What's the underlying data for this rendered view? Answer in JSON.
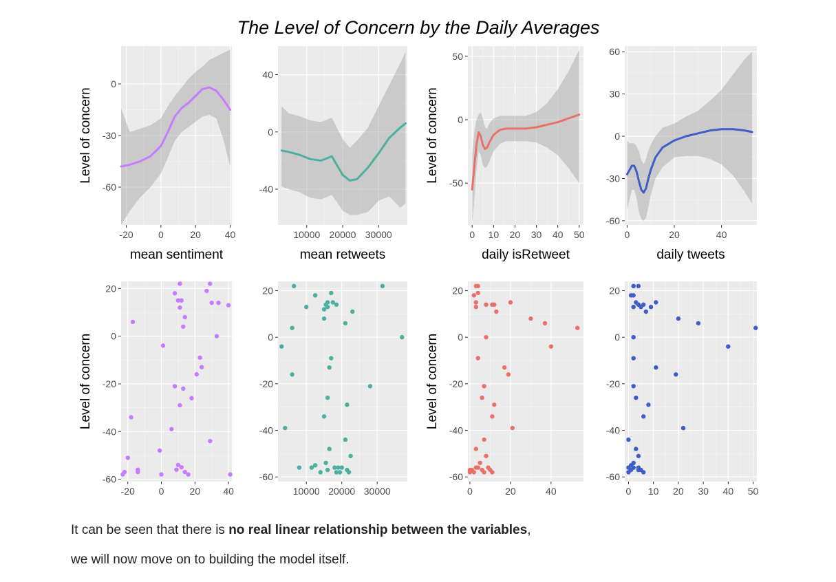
{
  "figure_title": "The Level of Concern by the Daily Averages",
  "paragraph": {
    "line1_before": "It can be seen that there is ",
    "line1_bold": "no real linear relationship between the variables",
    "line1_after": ",",
    "line2": "we will now move on to building the model itself."
  },
  "chart_data": [
    {
      "type": "line",
      "id": "smooth-sentiment",
      "color": "#c77cff",
      "xlabel": "mean sentiment",
      "ylabel": "Level of concern",
      "xlim": [
        -23,
        41
      ],
      "ylim": [
        -82,
        22
      ],
      "xticks": [
        -20,
        0,
        20,
        40
      ],
      "yticks": [
        -60,
        -30,
        0
      ],
      "x": [
        -23,
        -18,
        -12,
        -6,
        0,
        4,
        8,
        12,
        16,
        20,
        24,
        28,
        32,
        36,
        40
      ],
      "y": [
        -48,
        -47,
        -45,
        -42,
        -36,
        -28,
        -19,
        -14,
        -11,
        -7,
        -3,
        -2,
        -4,
        -9,
        -15
      ],
      "lower": [
        -82,
        -74,
        -66,
        -60,
        -52,
        -43,
        -33,
        -28,
        -25,
        -22,
        -19,
        -18,
        -20,
        -32,
        -48
      ],
      "upper": [
        -14,
        -28,
        -26,
        -24,
        -20,
        -13,
        -7,
        -2,
        3,
        7,
        10,
        14,
        16,
        18,
        20
      ]
    },
    {
      "type": "line",
      "id": "smooth-retweets",
      "color": "#4daf9f",
      "xlabel": "mean retweets",
      "ylabel": "",
      "xlim": [
        2000,
        38000
      ],
      "ylim": [
        -65,
        60
      ],
      "xticks": [
        10000,
        20000,
        30000
      ],
      "yticks": [
        -40,
        0,
        40
      ],
      "x": [
        3000,
        5000,
        8000,
        11000,
        14000,
        17000,
        20000,
        22000,
        24000,
        27000,
        30000,
        33000,
        36000,
        37500
      ],
      "y": [
        -13,
        -14,
        -16,
        -19,
        -20,
        -17,
        -30,
        -34,
        -33,
        -25,
        -15,
        -4,
        3,
        6
      ],
      "lower": [
        -38,
        -40,
        -42,
        -46,
        -47,
        -44,
        -55,
        -58,
        -58,
        -56,
        -48,
        -45,
        -53,
        -50
      ],
      "upper": [
        18,
        13,
        11,
        8,
        7,
        10,
        -5,
        -11,
        -6,
        3,
        18,
        33,
        48,
        56
      ]
    },
    {
      "type": "line",
      "id": "smooth-isretweet",
      "color": "#e8726a",
      "xlabel": "daily isRetweet",
      "ylabel": "Level of concern",
      "xlim": [
        -2,
        52
      ],
      "ylim": [
        -83,
        58
      ],
      "xticks": [
        0,
        10,
        20,
        30,
        40,
        50
      ],
      "yticks": [
        -50,
        0,
        50
      ],
      "x": [
        0,
        1,
        2,
        3,
        4,
        5,
        6,
        7,
        8,
        10,
        13,
        16,
        20,
        25,
        30,
        35,
        40,
        45,
        50
      ],
      "y": [
        -55,
        -37,
        -20,
        -10,
        -13,
        -20,
        -23,
        -22,
        -18,
        -12,
        -8,
        -7,
        -7,
        -7,
        -6,
        -4,
        -2,
        1,
        4
      ],
      "lower": [
        -82,
        -64,
        -40,
        -25,
        -28,
        -36,
        -38,
        -37,
        -33,
        -25,
        -19,
        -17,
        -17,
        -17,
        -18,
        -22,
        -28,
        -38,
        -50
      ],
      "upper": [
        -27,
        -10,
        0,
        4,
        6,
        1,
        -6,
        -7,
        -3,
        1,
        3,
        3,
        3,
        3,
        6,
        13,
        24,
        38,
        55
      ]
    },
    {
      "type": "line",
      "id": "smooth-tweets",
      "color": "#3f5cc7",
      "xlabel": "daily tweets",
      "ylabel": "",
      "xlim": [
        -1,
        55
      ],
      "ylim": [
        -63,
        64
      ],
      "xticks": [
        0,
        20,
        40
      ],
      "yticks": [
        -60,
        -30,
        0,
        30,
        60
      ],
      "x": [
        0,
        1,
        2,
        3,
        4,
        5,
        6,
        7,
        8,
        9,
        10,
        12,
        15,
        20,
        25,
        30,
        35,
        40,
        45,
        50,
        53
      ],
      "y": [
        -27,
        -24,
        -21,
        -21,
        -25,
        -32,
        -38,
        -40,
        -37,
        -30,
        -24,
        -15,
        -8,
        -3,
        0,
        2,
        4,
        5,
        5,
        4,
        3
      ],
      "lower": [
        -52,
        -45,
        -38,
        -38,
        -44,
        -54,
        -59,
        -60,
        -58,
        -50,
        -42,
        -30,
        -22,
        -15,
        -14,
        -14,
        -16,
        -20,
        -28,
        -40,
        -48
      ],
      "upper": [
        -3,
        -5,
        -5,
        -5,
        -7,
        -11,
        -17,
        -20,
        -16,
        -10,
        -6,
        0,
        6,
        9,
        14,
        18,
        25,
        33,
        44,
        55,
        60
      ]
    },
    {
      "type": "scatter",
      "id": "scatter-sentiment",
      "color": "#c77cff",
      "xlabel": "",
      "ylabel": "Level of concern",
      "xlim": [
        -24,
        42
      ],
      "ylim": [
        -61,
        23
      ],
      "xticks": [
        -20,
        0,
        20,
        40
      ],
      "yticks": [
        -60,
        -40,
        -20,
        0,
        20
      ],
      "points": [
        [
          11,
          22
        ],
        [
          29,
          22
        ],
        [
          8,
          18
        ],
        [
          27,
          19
        ],
        [
          10,
          15
        ],
        [
          12,
          15
        ],
        [
          30,
          14
        ],
        [
          34,
          14
        ],
        [
          40,
          13
        ],
        [
          11,
          12
        ],
        [
          14,
          8
        ],
        [
          -17,
          6
        ],
        [
          13,
          4
        ],
        [
          33,
          0
        ],
        [
          1,
          -4
        ],
        [
          23,
          -9
        ],
        [
          24,
          -13
        ],
        [
          21,
          -16
        ],
        [
          8,
          -21
        ],
        [
          13,
          -22
        ],
        [
          18,
          -26
        ],
        [
          11,
          -29
        ],
        [
          -18,
          -34
        ],
        [
          29,
          -44
        ],
        [
          6,
          -39
        ],
        [
          -1,
          -48
        ],
        [
          -20,
          -51
        ],
        [
          10,
          -54
        ],
        [
          12,
          -55
        ],
        [
          9,
          -56
        ],
        [
          14,
          -57
        ],
        [
          -14,
          -56
        ],
        [
          -14,
          -57
        ],
        [
          -22,
          -57
        ],
        [
          -23,
          -58
        ],
        [
          0,
          -58
        ],
        [
          16,
          -58
        ],
        [
          41,
          -58
        ]
      ]
    },
    {
      "type": "scatter",
      "id": "scatter-retweets",
      "color": "#4daf9f",
      "xlabel": "",
      "ylabel": "",
      "xlim": [
        2000,
        38500
      ],
      "ylim": [
        -62,
        24
      ],
      "xticks": [
        10000,
        20000,
        30000
      ],
      "yticks": [
        -60,
        -40,
        -20,
        0,
        20
      ],
      "points": [
        [
          6500,
          22
        ],
        [
          31500,
          22
        ],
        [
          12500,
          18
        ],
        [
          17000,
          19
        ],
        [
          16000,
          15
        ],
        [
          17500,
          15
        ],
        [
          15500,
          14
        ],
        [
          18500,
          14
        ],
        [
          16000,
          13
        ],
        [
          15000,
          12
        ],
        [
          23000,
          11
        ],
        [
          10000,
          13
        ],
        [
          15000,
          8
        ],
        [
          21000,
          6
        ],
        [
          6000,
          4
        ],
        [
          37000,
          0
        ],
        [
          3000,
          -4
        ],
        [
          17000,
          -9
        ],
        [
          16500,
          -13
        ],
        [
          6000,
          -16
        ],
        [
          28000,
          -21
        ],
        [
          16000,
          -26
        ],
        [
          21500,
          -29
        ],
        [
          15000,
          -34
        ],
        [
          4000,
          -39
        ],
        [
          21000,
          -44
        ],
        [
          16500,
          -48
        ],
        [
          22500,
          -51
        ],
        [
          15500,
          -54
        ],
        [
          8000,
          -56
        ],
        [
          11500,
          -56
        ],
        [
          12500,
          -55
        ],
        [
          16000,
          -57
        ],
        [
          18000,
          -56
        ],
        [
          19000,
          -56
        ],
        [
          20000,
          -56
        ],
        [
          18500,
          -58
        ],
        [
          21500,
          -57
        ],
        [
          14000,
          -58
        ],
        [
          19500,
          -58
        ],
        [
          22000,
          -58
        ]
      ]
    },
    {
      "type": "scatter",
      "id": "scatter-isretweet",
      "color": "#e8726a",
      "xlabel": "",
      "ylabel": "Level of concern",
      "xlim": [
        -1,
        56
      ],
      "ylim": [
        -62,
        24
      ],
      "xticks": [
        0,
        20,
        40
      ],
      "yticks": [
        -60,
        -40,
        -20,
        0,
        20
      ],
      "points": [
        [
          3,
          22
        ],
        [
          4,
          22
        ],
        [
          2,
          18
        ],
        [
          4,
          19
        ],
        [
          3,
          15
        ],
        [
          20,
          15
        ],
        [
          8,
          14
        ],
        [
          11,
          14
        ],
        [
          12,
          14
        ],
        [
          3,
          13
        ],
        [
          13,
          11
        ],
        [
          30,
          8
        ],
        [
          37,
          6
        ],
        [
          53,
          4
        ],
        [
          8,
          0
        ],
        [
          40,
          -4
        ],
        [
          4,
          -9
        ],
        [
          17,
          -13
        ],
        [
          19,
          -16
        ],
        [
          7,
          -21
        ],
        [
          6,
          -26
        ],
        [
          12,
          -29
        ],
        [
          11,
          -34
        ],
        [
          21,
          -39
        ],
        [
          7,
          -44
        ],
        [
          3,
          -48
        ],
        [
          8,
          -51
        ],
        [
          5,
          -54
        ],
        [
          4,
          -56
        ],
        [
          6,
          -57
        ],
        [
          9,
          -56
        ],
        [
          10,
          -57
        ],
        [
          0,
          -57
        ],
        [
          0,
          -58
        ],
        [
          2,
          -58
        ],
        [
          1,
          -57
        ],
        [
          3,
          -56
        ],
        [
          7,
          -58
        ],
        [
          11,
          -58
        ]
      ]
    },
    {
      "type": "scatter",
      "id": "scatter-tweets",
      "color": "#3f5cc7",
      "xlabel": "",
      "ylabel": "",
      "xlim": [
        -1.5,
        51.5
      ],
      "ylim": [
        -62,
        24
      ],
      "xticks": [
        0,
        10,
        20,
        30,
        40,
        50
      ],
      "yticks": [
        -60,
        -40,
        -20,
        0,
        20
      ],
      "points": [
        [
          2,
          22
        ],
        [
          4,
          22
        ],
        [
          1,
          18
        ],
        [
          2,
          18
        ],
        [
          3,
          15
        ],
        [
          4,
          14
        ],
        [
          5,
          13
        ],
        [
          2,
          13
        ],
        [
          6,
          14
        ],
        [
          9,
          13
        ],
        [
          11,
          15
        ],
        [
          7,
          11
        ],
        [
          20,
          8
        ],
        [
          28,
          6
        ],
        [
          51,
          4
        ],
        [
          2,
          0
        ],
        [
          40,
          -4
        ],
        [
          2,
          -9
        ],
        [
          11,
          -13
        ],
        [
          19,
          -16
        ],
        [
          2,
          -21
        ],
        [
          3,
          -26
        ],
        [
          8,
          -29
        ],
        [
          6,
          -34
        ],
        [
          22,
          -39
        ],
        [
          0,
          -44
        ],
        [
          3,
          -48
        ],
        [
          4,
          -51
        ],
        [
          2,
          -54
        ],
        [
          1,
          -55
        ],
        [
          0,
          -56
        ],
        [
          2,
          -56
        ],
        [
          4,
          -56
        ],
        [
          4,
          -57
        ],
        [
          5,
          -57
        ],
        [
          6,
          -58
        ],
        [
          0,
          -58
        ],
        [
          1,
          -57
        ]
      ]
    }
  ]
}
